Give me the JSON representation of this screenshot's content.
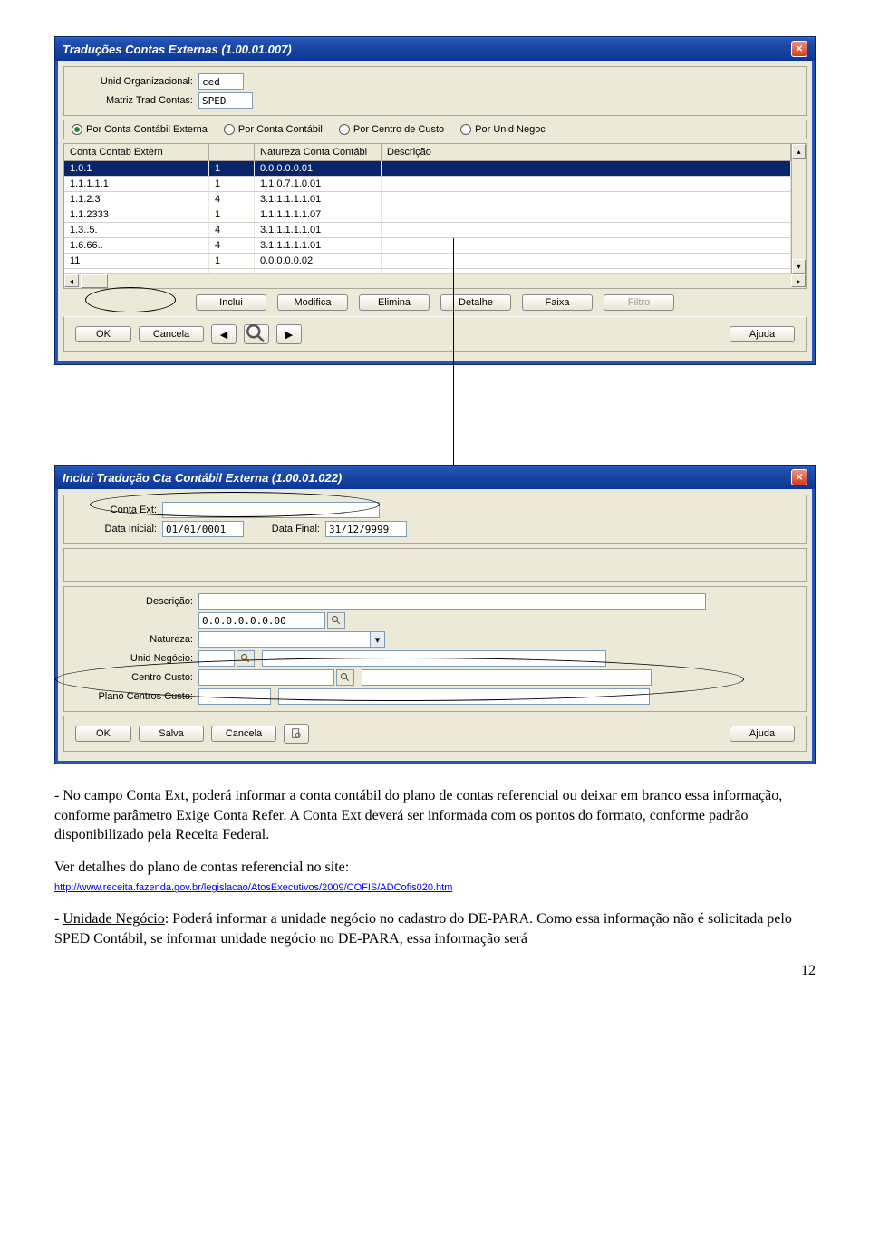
{
  "win1": {
    "title": "Traduções Contas Externas (1.00.01.007)",
    "labels": {
      "unid_org": "Unid Organizacional:",
      "matriz": "Matriz Trad Contas:"
    },
    "values": {
      "unid_org": "ced",
      "matriz": "SPED"
    },
    "radios": {
      "r1": "Por Conta Contábil Externa",
      "r2": "Por Conta Contábil",
      "r3": "Por Centro de Custo",
      "r4": "Por Unid Negoc"
    },
    "grid": {
      "headers": {
        "c0": "Conta Contab Extern",
        "c1": "",
        "c2": "Natureza Conta Contábl",
        "c3": "Descrição"
      },
      "rows": [
        {
          "c0": "1.0.1",
          "c1": "1",
          "c2": "0.0.0.0.0.01",
          "c3": ""
        },
        {
          "c0": "1.1.1.1.1",
          "c1": "1",
          "c2": "1.1.0.7.1.0.01",
          "c3": ""
        },
        {
          "c0": "1.1.2.3",
          "c1": "4",
          "c2": "3.1.1.1.1.1.01",
          "c3": ""
        },
        {
          "c0": "1.1.2333",
          "c1": "1",
          "c2": "1.1.1.1.1.1.07",
          "c3": ""
        },
        {
          "c0": "1.3..5.",
          "c1": "4",
          "c2": "3.1.1.1.1.1.01",
          "c3": ""
        },
        {
          "c0": "1.6.66..",
          "c1": "4",
          "c2": "3.1.1.1.1.1.01",
          "c3": ""
        },
        {
          "c0": "11",
          "c1": "1",
          "c2": "0.0.0.0.0.02",
          "c3": ""
        },
        {
          "c0": "",
          "c1": "",
          "c2": "",
          "c3": ""
        }
      ]
    },
    "buttons": {
      "inclui": "Inclui",
      "modifica": "Modifica",
      "elimina": "Elimina",
      "detalhe": "Detalhe",
      "faixa": "Faixa",
      "filtro": "Filtro",
      "ok": "OK",
      "cancela": "Cancela",
      "ajuda": "Ajuda"
    }
  },
  "win2": {
    "title": "Inclui Tradução Cta Contábil Externa (1.00.01.022)",
    "labels": {
      "conta_ext": "Conta Ext:",
      "data_inicial": "Data Inicial:",
      "data_final": "Data Final:",
      "descricao": "Descrição:",
      "natureza": "Natureza:",
      "unid_neg": "Unid Negócio:",
      "centro_custo": "Centro Custo:",
      "plano_cc": "Plano Centros Custo:"
    },
    "values": {
      "conta_ext": "",
      "data_inicial": "01/01/0001",
      "data_final": "31/12/9999",
      "descricao": "",
      "codigo": "0.0.0.0.0.0.00",
      "natureza": "",
      "unid_neg": "",
      "centro_custo": "",
      "plano_cc": ""
    },
    "buttons": {
      "ok": "OK",
      "salva": "Salva",
      "cancela": "Cancela",
      "ajuda": "Ajuda"
    }
  },
  "doc": {
    "p1": "- No campo Conta Ext, poderá informar a conta contábil do plano de contas referencial ou deixar em branco essa informação, conforme parâmetro Exige Conta Refer. A Conta Ext deverá ser informada com os pontos do formato, conforme padrão disponibilizado pela Receita Federal.",
    "p2": "Ver detalhes do plano de contas referencial no site:",
    "link": "http://www.receita.fazenda.gov.br/legislacao/AtosExecutivos/2009/COFIS/ADCofis020.htm",
    "p3a": "- ",
    "p3u": "Unidade Negócio",
    "p3b": ": Poderá informar a unidade negócio no cadastro do DE-PARA. Como essa informação não é solicitada pelo SPED Contábil, se informar unidade negócio no DE-PARA, essa informação será",
    "page": "12"
  }
}
